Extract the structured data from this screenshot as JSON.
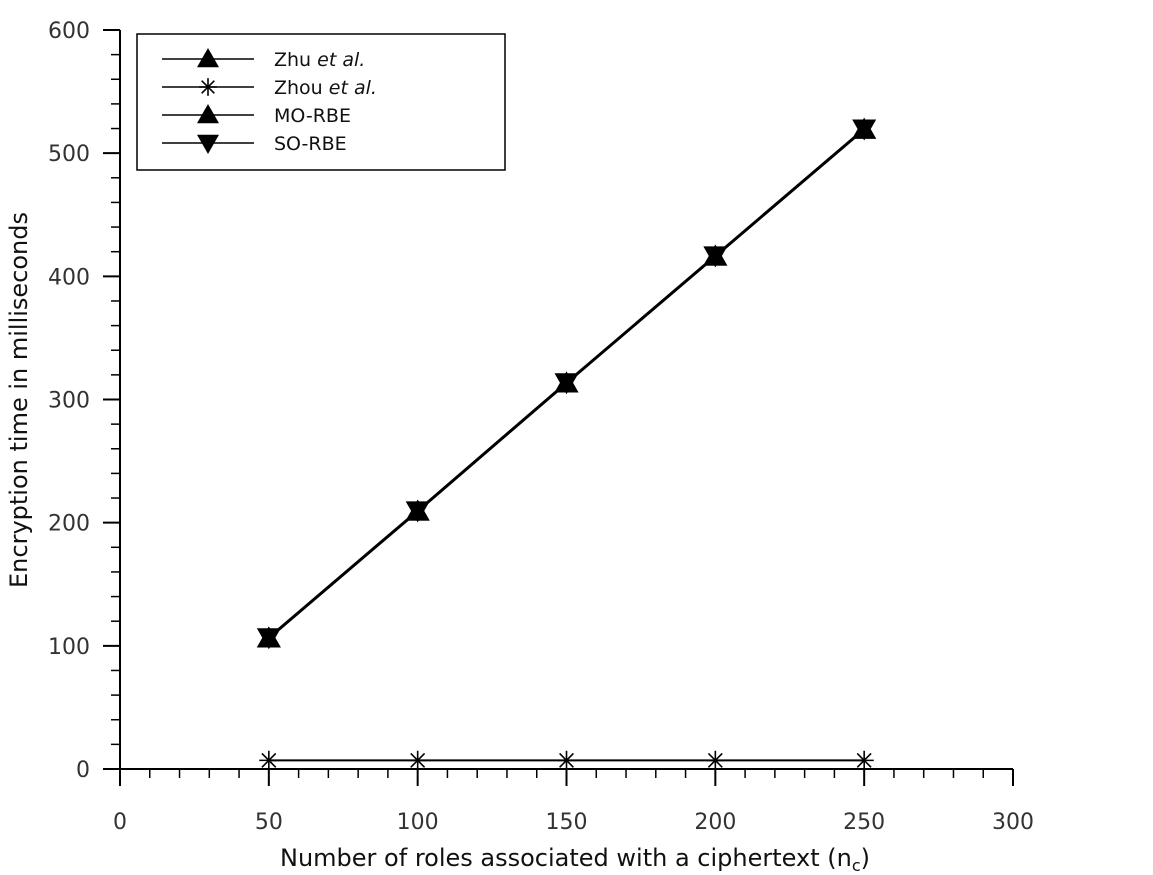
{
  "chart_data": {
    "type": "line",
    "x": [
      50,
      100,
      150,
      200,
      250
    ],
    "xlim": [
      0,
      300
    ],
    "ylim": [
      0,
      600
    ],
    "x_major_ticks": [
      0,
      50,
      100,
      150,
      200,
      250,
      300
    ],
    "y_major_ticks": [
      0,
      100,
      200,
      300,
      400,
      500,
      600
    ],
    "x_minor_step": 10,
    "y_minor_step": 20,
    "grid": false,
    "legend_position": "top-left",
    "xlabel": "Number of roles associated with a ciphertext (n",
    "xlabel_sub": "c",
    "xlabel_close": ")",
    "ylabel": "Encryption time in milliseconds",
    "series": [
      {
        "name": "Zhu",
        "name_italic": "et al.",
        "marker": "triangle-up",
        "color": "#000000",
        "values": [
          106,
          209,
          313,
          416,
          519
        ]
      },
      {
        "name": "Zhou",
        "name_italic": "et al.",
        "marker": "asterisk",
        "color": "#000000",
        "values": [
          7,
          7,
          7,
          7,
          7
        ]
      },
      {
        "name": "MO-RBE",
        "name_italic": "",
        "marker": "triangle-up",
        "color": "#000000",
        "values": [
          106,
          209,
          313,
          416,
          519
        ]
      },
      {
        "name": "SO-RBE",
        "name_italic": "",
        "marker": "triangle-down",
        "color": "#000000",
        "values": [
          107,
          210,
          314,
          417,
          520
        ]
      }
    ]
  }
}
